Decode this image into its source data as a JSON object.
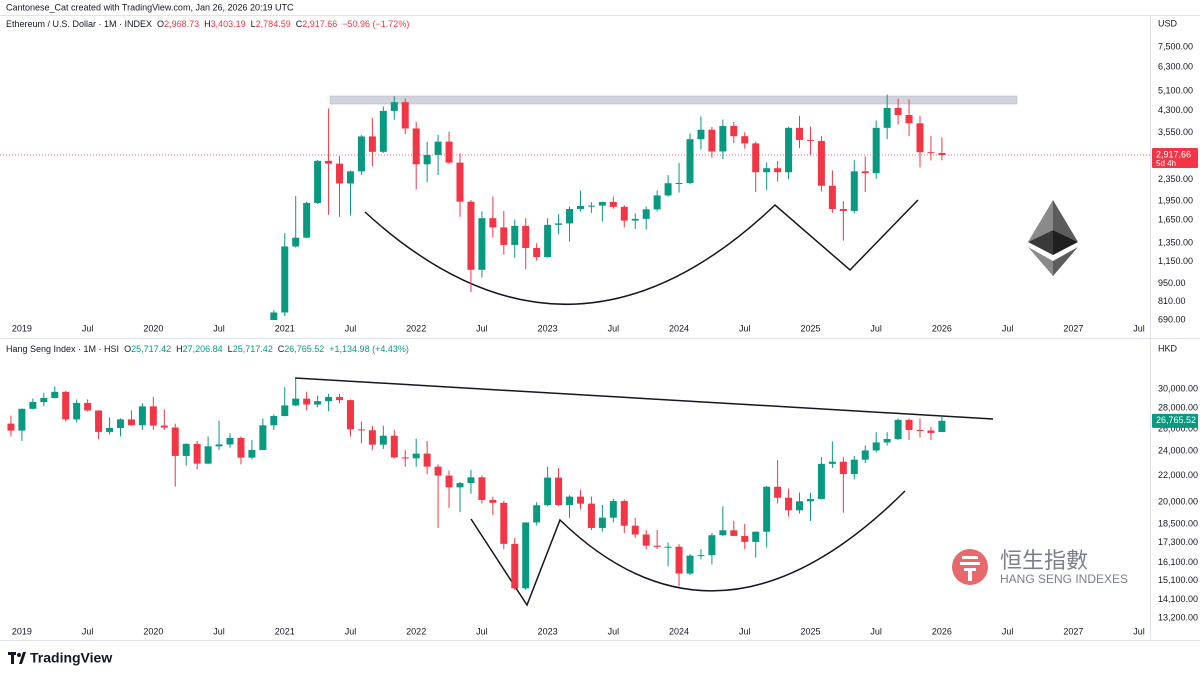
{
  "attribution": "Cantonese_Cat created with TradingView.com, Jan 26, 2026 20:19 UTC",
  "brand": "TradingView",
  "chart_data": [
    {
      "type": "candlestick",
      "legend": {
        "title": "Ethereum / U.S. Dollar · 1M · INDEX",
        "items": [
          {
            "key": "O",
            "text": "2,968.73"
          },
          {
            "key": "H",
            "text": "3,403.19"
          },
          {
            "key": "L",
            "text": "2,784.59"
          },
          {
            "key": "C",
            "text": "2,917.66"
          }
        ],
        "change": "−50.96 (−1.72%)"
      },
      "currency": "USD",
      "last_label": {
        "price": "2,917.66",
        "countdown": "5d 4h"
      },
      "price_line": true,
      "log_scale": true,
      "grid": false,
      "up_color": "#089981",
      "down_color": "#f23645",
      "xlim": [
        "2018-11",
        "2027-08"
      ],
      "xticks": [
        {
          "value": "2019-01",
          "label": "2019"
        },
        {
          "value": "2019-07",
          "label": "Jul"
        },
        {
          "value": "2020-01",
          "label": "2020"
        },
        {
          "value": "2020-07",
          "label": "Jul"
        },
        {
          "value": "2021-01",
          "label": "2021"
        },
        {
          "value": "2021-07",
          "label": "Jul"
        },
        {
          "value": "2022-01",
          "label": "2022"
        },
        {
          "value": "2022-07",
          "label": "Jul"
        },
        {
          "value": "2023-01",
          "label": "2023"
        },
        {
          "value": "2023-07",
          "label": "Jul"
        },
        {
          "value": "2024-01",
          "label": "2024"
        },
        {
          "value": "2024-07",
          "label": "Jul"
        },
        {
          "value": "2025-01",
          "label": "2025"
        },
        {
          "value": "2025-07",
          "label": "Jul"
        },
        {
          "value": "2026-01",
          "label": "2026"
        },
        {
          "value": "2026-07",
          "label": "Jul"
        },
        {
          "value": "2027-01",
          "label": "2027"
        },
        {
          "value": "2027-07",
          "label": "Jul"
        }
      ],
      "ylim": [
        690,
        9920
      ],
      "yticks": [
        {
          "value": 7500,
          "label": "7,500.00"
        },
        {
          "value": 6300,
          "label": "6,300.00"
        },
        {
          "value": 5100,
          "label": "5,100.00"
        },
        {
          "value": 4300,
          "label": "4,300.00"
        },
        {
          "value": 3550,
          "label": "3,550.00"
        },
        {
          "value": 2350,
          "label": "2,350.00"
        },
        {
          "value": 1950,
          "label": "1,950.00"
        },
        {
          "value": 1650,
          "label": "1,650.00"
        },
        {
          "value": 1350,
          "label": "1,350.00"
        },
        {
          "value": 1150,
          "label": "1,150.00"
        },
        {
          "value": 950,
          "label": "950.00"
        },
        {
          "value": 810,
          "label": "810.00"
        },
        {
          "value": 690,
          "label": "690.00"
        }
      ],
      "x": [
        "2020-12",
        "2021-01",
        "2021-02",
        "2021-03",
        "2021-04",
        "2021-05",
        "2021-06",
        "2021-07",
        "2021-08",
        "2021-09",
        "2021-10",
        "2021-11",
        "2021-12",
        "2022-01",
        "2022-02",
        "2022-03",
        "2022-04",
        "2022-05",
        "2022-06",
        "2022-07",
        "2022-08",
        "2022-09",
        "2022-10",
        "2022-11",
        "2022-12",
        "2023-01",
        "2023-02",
        "2023-03",
        "2023-04",
        "2023-05",
        "2023-06",
        "2023-07",
        "2023-08",
        "2023-09",
        "2023-10",
        "2023-11",
        "2023-12",
        "2024-01",
        "2024-02",
        "2024-03",
        "2024-04",
        "2024-05",
        "2024-06",
        "2024-07",
        "2024-08",
        "2024-09",
        "2024-10",
        "2024-11",
        "2024-12",
        "2025-01",
        "2025-02",
        "2025-03",
        "2025-04",
        "2025-05",
        "2025-06",
        "2025-07",
        "2025-08",
        "2025-09",
        "2025-10",
        "2025-11",
        "2025-12",
        "2026-01"
      ],
      "open": [
        616,
        737,
        1312,
        1417,
        1919,
        2773,
        2706,
        2275,
        2530,
        3433,
        3000,
        4290,
        4630,
        3680,
        2690,
        2920,
        3280,
        2730,
        1940,
        1070,
        1680,
        1550,
        1330,
        1570,
        1295,
        1196,
        1585,
        1605,
        1820,
        1870,
        1875,
        1935,
        1855,
        1645,
        1670,
        1815,
        2050,
        2280,
        2285,
        3350,
        3640,
        3010,
        3760,
        3440,
        3230,
        2510,
        2600,
        2510,
        3700,
        3330,
        3300,
        2230,
        1820,
        1790,
        2530,
        2490,
        3700,
        4400,
        4140,
        3850,
        2990,
        2968.73
      ],
      "high": [
        752,
        1475,
        2041,
        1943,
        2797,
        4380,
        2890,
        2550,
        3470,
        4030,
        4460,
        4870,
        4780,
        3900,
        3280,
        3480,
        3580,
        2960,
        1970,
        1785,
        2030,
        1790,
        1660,
        1680,
        1350,
        1680,
        1740,
        1860,
        2140,
        1930,
        1940,
        2030,
        1880,
        1750,
        1860,
        2140,
        2450,
        2720,
        3520,
        4090,
        3730,
        3980,
        3890,
        3560,
        3280,
        2730,
        2770,
        3740,
        4110,
        3740,
        3440,
        2550,
        1950,
        2790,
        2880,
        3940,
        4950,
        4770,
        4750,
        4110,
        3450,
        3403.19
      ],
      "low": [
        566,
        714,
        1300,
        1410,
        1900,
        1730,
        1700,
        1720,
        2450,
        2650,
        2970,
        3970,
        3500,
        2160,
        2300,
        2450,
        2700,
        1700,
        880,
        1000,
        1420,
        1220,
        1190,
        1075,
        1160,
        1190,
        1460,
        1370,
        1780,
        1760,
        1630,
        1825,
        1550,
        1530,
        1520,
        1780,
        2030,
        2100,
        2260,
        3060,
        2850,
        2820,
        3240,
        3080,
        2110,
        2150,
        2310,
        2360,
        3100,
        2920,
        2120,
        1760,
        1380,
        1750,
        2110,
        2370,
        3350,
        3810,
        3440,
        2620,
        2780,
        2784.59
      ],
      "close": [
        737,
        1312,
        1417,
        1919,
        2773,
        2706,
        2275,
        2530,
        3433,
        3000,
        4290,
        4630,
        3680,
        2690,
        2920,
        3280,
        2730,
        1940,
        1070,
        1680,
        1550,
        1330,
        1570,
        1295,
        1196,
        1585,
        1605,
        1820,
        1870,
        1875,
        1935,
        1855,
        1645,
        1670,
        1815,
        2050,
        2280,
        2285,
        3350,
        3640,
        3010,
        3760,
        3440,
        3230,
        2510,
        2600,
        2510,
        3700,
        3330,
        3300,
        2230,
        1820,
        1790,
        2530,
        2490,
        3700,
        4400,
        4140,
        3850,
        2990,
        2968.62,
        2917.66
      ]
    },
    {
      "type": "candlestick",
      "legend": {
        "title": "Hang Seng Index · 1M · HSI",
        "items": [
          {
            "key": "O",
            "text": "25,717.42"
          },
          {
            "key": "H",
            "text": "27,206.84"
          },
          {
            "key": "L",
            "text": "25,717.42"
          },
          {
            "key": "C",
            "text": "26,765.52"
          }
        ],
        "change": "+1,134.98 (+4.43%)"
      },
      "currency": "HKD",
      "last_label": {
        "price": "26,765.52"
      },
      "price_line": false,
      "log_scale": true,
      "grid": false,
      "up_color": "#089981",
      "down_color": "#f23645",
      "logo_text": [
        "恒生指數",
        "HANG SENG INDEXES"
      ],
      "xlim": [
        "2018-11",
        "2027-08"
      ],
      "xticks": [
        {
          "value": "2019-01",
          "label": "2019"
        },
        {
          "value": "2019-07",
          "label": "Jul"
        },
        {
          "value": "2020-01",
          "label": "2020"
        },
        {
          "value": "2020-07",
          "label": "Jul"
        },
        {
          "value": "2021-01",
          "label": "2021"
        },
        {
          "value": "2021-07",
          "label": "Jul"
        },
        {
          "value": "2022-01",
          "label": "2022"
        },
        {
          "value": "2022-07",
          "label": "Jul"
        },
        {
          "value": "2023-01",
          "label": "2023"
        },
        {
          "value": "2023-07",
          "label": "Jul"
        },
        {
          "value": "2024-01",
          "label": "2024"
        },
        {
          "value": "2024-07",
          "label": "Jul"
        },
        {
          "value": "2025-01",
          "label": "2025"
        },
        {
          "value": "2025-07",
          "label": "Jul"
        },
        {
          "value": "2026-01",
          "label": "2026"
        },
        {
          "value": "2026-07",
          "label": "Jul"
        },
        {
          "value": "2027-01",
          "label": "2027"
        },
        {
          "value": "2027-07",
          "label": "Jul"
        }
      ],
      "ylim": [
        12970,
        35760
      ],
      "yticks": [
        {
          "value": 30000,
          "label": "30,000.00"
        },
        {
          "value": 28000,
          "label": "28,000.00"
        },
        {
          "value": 26000,
          "label": "26,000.00"
        },
        {
          "value": 24000,
          "label": "24,000.00"
        },
        {
          "value": 22000,
          "label": "22,000.00"
        },
        {
          "value": 20000,
          "label": "20,000.00"
        },
        {
          "value": 18500,
          "label": "18,500.00"
        },
        {
          "value": 17300,
          "label": "17,300.00"
        },
        {
          "value": 16100,
          "label": "16,100.00"
        },
        {
          "value": 15100,
          "label": "15,100.00"
        },
        {
          "value": 14100,
          "label": "14,100.00"
        },
        {
          "value": 13200,
          "label": "13,200.00"
        }
      ],
      "x": [
        "2018-12",
        "2019-01",
        "2019-02",
        "2019-03",
        "2019-04",
        "2019-05",
        "2019-06",
        "2019-07",
        "2019-08",
        "2019-09",
        "2019-10",
        "2019-11",
        "2019-12",
        "2020-01",
        "2020-02",
        "2020-03",
        "2020-04",
        "2020-05",
        "2020-06",
        "2020-07",
        "2020-08",
        "2020-09",
        "2020-10",
        "2020-11",
        "2020-12",
        "2021-01",
        "2021-02",
        "2021-03",
        "2021-04",
        "2021-05",
        "2021-06",
        "2021-07",
        "2021-08",
        "2021-09",
        "2021-10",
        "2021-11",
        "2021-12",
        "2022-01",
        "2022-02",
        "2022-03",
        "2022-04",
        "2022-05",
        "2022-06",
        "2022-07",
        "2022-08",
        "2022-09",
        "2022-10",
        "2022-11",
        "2022-12",
        "2023-01",
        "2023-02",
        "2023-03",
        "2023-04",
        "2023-05",
        "2023-06",
        "2023-07",
        "2023-08",
        "2023-09",
        "2023-10",
        "2023-11",
        "2023-12",
        "2024-01",
        "2024-02",
        "2024-03",
        "2024-04",
        "2024-05",
        "2024-06",
        "2024-07",
        "2024-08",
        "2024-09",
        "2024-10",
        "2024-11",
        "2024-12",
        "2025-01",
        "2025-02",
        "2025-03",
        "2025-04",
        "2025-05",
        "2025-06",
        "2025-07",
        "2025-08",
        "2025-09",
        "2025-10",
        "2025-11",
        "2025-12",
        "2026-01"
      ],
      "open": [
        26500,
        25845,
        27942,
        28633,
        29051,
        29699,
        26901,
        28543,
        27778,
        25725,
        26092,
        26907,
        26346,
        28190,
        26313,
        26130,
        23603,
        24643,
        22961,
        24427,
        24595,
        25177,
        23459,
        24107,
        26341,
        27231,
        28284,
        28980,
        28378,
        28725,
        29152,
        28828,
        25961,
        25879,
        24576,
        25377,
        23475,
        23398,
        23802,
        22713,
        21997,
        21089,
        21415,
        21860,
        20156,
        19954,
        17223,
        14687,
        18597,
        19781,
        21842,
        19786,
        20400,
        19895,
        18234,
        18916,
        20079,
        18382,
        17810,
        17112,
        17042,
        17047,
        15485,
        16511,
        16541,
        17763,
        18080,
        17719,
        17345,
        17989,
        21134,
        20317,
        19424,
        20060,
        20225,
        22941,
        23120,
        22119,
        23290,
        24072,
        24773,
        25077,
        26856,
        25907,
        25858,
        25717.42
      ],
      "high": [
        27260,
        27980,
        29000,
        29600,
        30280,
        29800,
        28900,
        28900,
        27800,
        27100,
        27000,
        27800,
        28500,
        29170,
        27900,
        26500,
        24700,
        24900,
        25300,
        26780,
        25600,
        25300,
        25000,
        27000,
        27400,
        30200,
        31180,
        29700,
        29300,
        29500,
        29500,
        28900,
        26700,
        26300,
        26300,
        25900,
        24100,
        25100,
        24900,
        22900,
        22400,
        21500,
        22450,
        22000,
        20400,
        20100,
        17600,
        18600,
        20000,
        22700,
        22600,
        20500,
        20900,
        20400,
        19800,
        20250,
        20200,
        18900,
        18100,
        18100,
        17300,
        17200,
        16600,
        16900,
        17900,
        19700,
        18700,
        18500,
        18000,
        21200,
        23240,
        21000,
        20700,
        20700,
        23500,
        24870,
        23500,
        23600,
        24500,
        25700,
        25700,
        27000,
        27000,
        27000,
        26200,
        27206.84
      ],
      "low": [
        25300,
        24900,
        27900,
        28200,
        29000,
        26700,
        26600,
        27700,
        25060,
        25500,
        25300,
        26300,
        25900,
        25900,
        25900,
        21140,
        22800,
        22500,
        22900,
        24100,
        24300,
        22900,
        23300,
        24100,
        25900,
        27200,
        28200,
        27800,
        28100,
        27700,
        28500,
        25300,
        24700,
        24100,
        24200,
        23400,
        22700,
        22700,
        22100,
        18235,
        19600,
        19300,
        20600,
        19900,
        19100,
        16900,
        14600,
        14600,
        18400,
        19700,
        19700,
        18900,
        19500,
        18100,
        18000,
        18600,
        17900,
        17600,
        16900,
        16900,
        15900,
        14794,
        15400,
        16300,
        16000,
        17700,
        17700,
        16900,
        16400,
        17000,
        19900,
        19000,
        19200,
        18700,
        20200,
        22600,
        19260,
        21700,
        23000,
        23900,
        24500,
        25000,
        25000,
        25200,
        25000,
        25717.42
      ],
      "close": [
        25845,
        27942,
        28633,
        29051,
        29699,
        26901,
        28543,
        27778,
        25725,
        26092,
        26907,
        26346,
        28190,
        26313,
        26130,
        23603,
        24643,
        22961,
        24427,
        24595,
        25177,
        23459,
        24107,
        26341,
        27231,
        28284,
        28980,
        28378,
        28725,
        29152,
        28828,
        25961,
        25879,
        24576,
        25377,
        23475,
        23398,
        23802,
        22713,
        21997,
        21089,
        21415,
        21860,
        20156,
        19954,
        17223,
        14687,
        18597,
        19781,
        21842,
        19786,
        20400,
        19895,
        18234,
        18916,
        20079,
        18382,
        17810,
        17112,
        17042,
        17047,
        15485,
        16511,
        16541,
        17763,
        18080,
        17719,
        17345,
        17989,
        21134,
        20317,
        19424,
        20060,
        20225,
        22941,
        23120,
        22119,
        23290,
        24072,
        24773,
        25077,
        26856,
        25907,
        25858,
        25630.54,
        26765.52
      ]
    }
  ]
}
